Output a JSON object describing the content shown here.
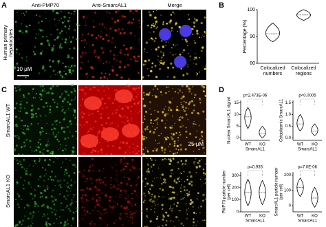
{
  "figure": {
    "panel_labels": [
      "A",
      "B",
      "C",
      "D"
    ],
    "image_titles": [
      "Anti-PMP70",
      "Anti-SmarcAL1",
      "Merge"
    ],
    "row_label_a": [
      "Human primary",
      "hepatocytes"
    ],
    "scale_a": "10 μM",
    "row_labels_c": [
      "SmarcAL1 WT",
      "SmarcAL1 KO"
    ],
    "scale_c": "25 μM"
  },
  "chart_data": [
    {
      "type": "violin",
      "ylabel": [
        "Percentage (%)"
      ],
      "categories": [
        [
          "Colocalized",
          "numbers"
        ],
        [
          "Colocalized",
          "regions"
        ]
      ],
      "min": [
        88,
        96
      ],
      "median": [
        91,
        98
      ],
      "max": [
        95,
        100
      ],
      "ylim": [
        80,
        100
      ],
      "yticks": [
        80,
        90,
        100
      ]
    },
    {
      "type": "violin",
      "ylabel": [
        "Nuclear SmarcAL1 signal"
      ],
      "xlabel": "SmarcAL1",
      "annotation": "p=2.473E-06",
      "categories": [
        "WT",
        "KO"
      ],
      "min": [
        4,
        0
      ],
      "median": [
        9,
        2
      ],
      "max": [
        13,
        5
      ],
      "ylim": [
        -1,
        16
      ],
      "yticks": [
        0,
        5,
        10,
        15
      ]
    },
    {
      "type": "violin",
      "ylabel": [
        "Cytoplasmic SmarcAL1"
      ],
      "xlabel": "SmarcAL1",
      "annotation": "p<0.0005",
      "categories": [
        "WT",
        "KO"
      ],
      "min": [
        0.3,
        0.1
      ],
      "median": [
        0.6,
        0.3
      ],
      "max": [
        1.0,
        0.6
      ],
      "ylim": [
        -0.1,
        1.6
      ],
      "yticks": [
        {
          "value": 0,
          "label": "0.0"
        },
        0.5,
        {
          "value": 1,
          "label": "1.0"
        },
        1.5
      ]
    },
    {
      "type": "violin",
      "ylabel": [
        "PMP70 particle number",
        "(per cell)"
      ],
      "xlabel": "SmarcAL1",
      "annotation": "p=0.935",
      "categories": [
        "WT",
        "KO"
      ],
      "min": [
        50,
        60
      ],
      "median": [
        160,
        160
      ],
      "max": [
        270,
        260
      ],
      "ylim": [
        0,
        330
      ],
      "yticks": [
        0,
        100,
        200,
        300
      ]
    },
    {
      "type": "violin",
      "ylabel": [
        "SmarcAL1 particle number",
        "(per cell)"
      ],
      "xlabel": "SmarcAL1",
      "annotation": "p=7.0E-06",
      "categories": [
        "WT",
        "KO"
      ],
      "min": [
        60,
        -10
      ],
      "median": [
        120,
        50
      ],
      "max": [
        180,
        120
      ],
      "ylim": [
        -40,
        220
      ],
      "yticks": [
        0,
        100,
        200
      ]
    }
  ]
}
